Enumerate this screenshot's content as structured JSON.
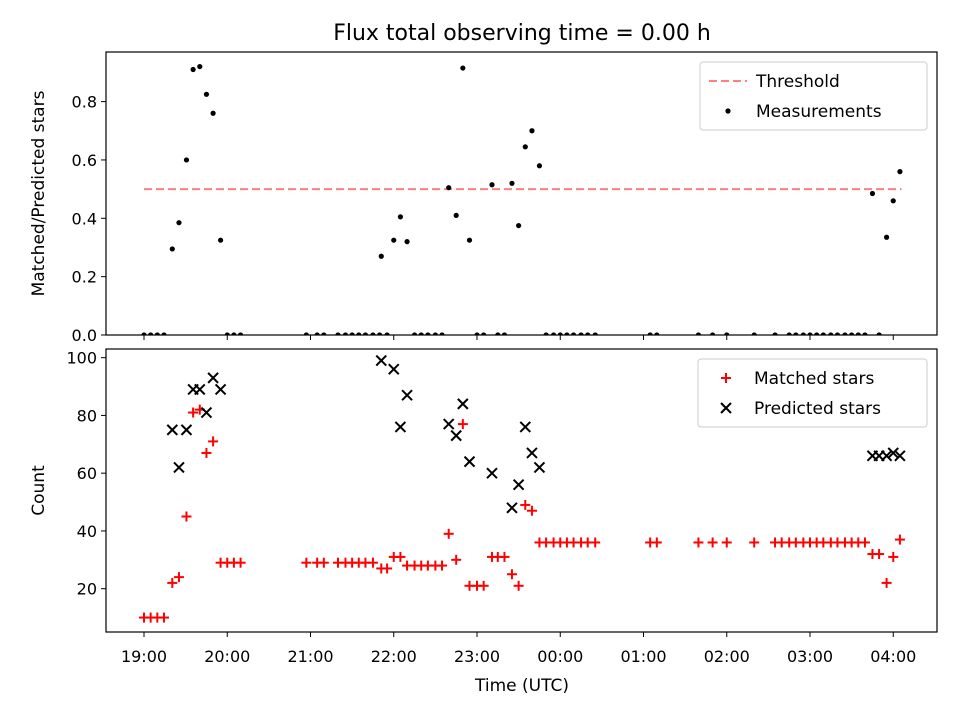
{
  "chart_data": {
    "type": "scatter",
    "title": "Flux total observing time = 0.00 h",
    "xlabel": "Time (UTC)",
    "x_ticks": [
      "19:00",
      "20:00",
      "21:00",
      "22:00",
      "23:00",
      "00:00",
      "01:00",
      "02:00",
      "03:00",
      "04:00"
    ],
    "panels": [
      {
        "name": "ratio",
        "ylabel": "Matched/Predicted stars",
        "ylim": [
          0,
          0.97
        ],
        "yticks": [
          "0.0",
          "0.2",
          "0.4",
          "0.6",
          "0.8"
        ],
        "legend_position": "upper right",
        "threshold": {
          "label": "Threshold",
          "value": 0.5,
          "x_range": [
            0,
            9.1
          ],
          "color": "#ff7f7f"
        },
        "series": [
          {
            "name": "Measurements",
            "marker": "dot",
            "color": "#000000",
            "points": [
              [
                0.0,
                0
              ],
              [
                0.08,
                0
              ],
              [
                0.16,
                0
              ],
              [
                0.24,
                0
              ],
              [
                0.34,
                0.295
              ],
              [
                0.42,
                0.385
              ],
              [
                0.51,
                0.6
              ],
              [
                0.59,
                0.91
              ],
              [
                0.67,
                0.92
              ],
              [
                0.75,
                0.825
              ],
              [
                0.83,
                0.76
              ],
              [
                0.92,
                0.325
              ],
              [
                1.0,
                0
              ],
              [
                1.08,
                0
              ],
              [
                1.16,
                0
              ],
              [
                1.95,
                0
              ],
              [
                2.08,
                0
              ],
              [
                2.16,
                0
              ],
              [
                2.33,
                0
              ],
              [
                2.42,
                0
              ],
              [
                2.5,
                0
              ],
              [
                2.58,
                0
              ],
              [
                2.66,
                0
              ],
              [
                2.75,
                0
              ],
              [
                2.83,
                0
              ],
              [
                2.85,
                0.27
              ],
              [
                2.92,
                0
              ],
              [
                3.0,
                0.325
              ],
              [
                3.08,
                0.405
              ],
              [
                3.16,
                0.32
              ],
              [
                3.25,
                0
              ],
              [
                3.33,
                0
              ],
              [
                3.41,
                0
              ],
              [
                3.5,
                0
              ],
              [
                3.58,
                0
              ],
              [
                3.66,
                0.505
              ],
              [
                3.75,
                0.41
              ],
              [
                3.83,
                0.915
              ],
              [
                3.91,
                0.325
              ],
              [
                4.0,
                0
              ],
              [
                4.08,
                0
              ],
              [
                4.18,
                0.515
              ],
              [
                4.25,
                0
              ],
              [
                4.33,
                0
              ],
              [
                4.42,
                0.52
              ],
              [
                4.5,
                0.375
              ],
              [
                4.58,
                0.645
              ],
              [
                4.66,
                0.7
              ],
              [
                4.75,
                0.58
              ],
              [
                4.83,
                0
              ],
              [
                4.92,
                0
              ],
              [
                5.0,
                0
              ],
              [
                5.08,
                0
              ],
              [
                5.16,
                0
              ],
              [
                5.25,
                0
              ],
              [
                5.33,
                0
              ],
              [
                5.42,
                0
              ],
              [
                6.08,
                0
              ],
              [
                6.16,
                0
              ],
              [
                6.66,
                0
              ],
              [
                6.83,
                0
              ],
              [
                7.0,
                0
              ],
              [
                7.33,
                0
              ],
              [
                7.58,
                0
              ],
              [
                7.75,
                0
              ],
              [
                7.83,
                0
              ],
              [
                7.92,
                0
              ],
              [
                8.0,
                0
              ],
              [
                8.08,
                0
              ],
              [
                8.16,
                0
              ],
              [
                8.25,
                0
              ],
              [
                8.33,
                0
              ],
              [
                8.42,
                0
              ],
              [
                8.5,
                0
              ],
              [
                8.58,
                0
              ],
              [
                8.66,
                0
              ],
              [
                8.75,
                0.485
              ],
              [
                8.83,
                0
              ],
              [
                8.92,
                0.335
              ],
              [
                9.0,
                0.46
              ],
              [
                9.08,
                0.56
              ]
            ]
          }
        ]
      },
      {
        "name": "count",
        "ylabel": "Count",
        "ylim": [
          5,
          103
        ],
        "yticks": [
          "20",
          "40",
          "60",
          "80",
          "100"
        ],
        "legend_position": "upper right",
        "series": [
          {
            "name": "Matched stars",
            "marker": "plus",
            "color": "#ff0000",
            "points": [
              [
                0.0,
                10
              ],
              [
                0.08,
                10
              ],
              [
                0.16,
                10
              ],
              [
                0.24,
                10
              ],
              [
                0.34,
                22
              ],
              [
                0.42,
                24
              ],
              [
                0.51,
                45
              ],
              [
                0.59,
                81
              ],
              [
                0.67,
                82
              ],
              [
                0.75,
                67
              ],
              [
                0.83,
                71
              ],
              [
                0.92,
                29
              ],
              [
                1.0,
                29
              ],
              [
                1.08,
                29
              ],
              [
                1.16,
                29
              ],
              [
                1.95,
                29
              ],
              [
                2.08,
                29
              ],
              [
                2.16,
                29
              ],
              [
                2.33,
                29
              ],
              [
                2.42,
                29
              ],
              [
                2.5,
                29
              ],
              [
                2.58,
                29
              ],
              [
                2.66,
                29
              ],
              [
                2.75,
                29
              ],
              [
                2.85,
                27
              ],
              [
                2.92,
                27
              ],
              [
                3.0,
                31
              ],
              [
                3.08,
                31
              ],
              [
                3.16,
                28
              ],
              [
                3.25,
                28
              ],
              [
                3.33,
                28
              ],
              [
                3.41,
                28
              ],
              [
                3.5,
                28
              ],
              [
                3.58,
                28
              ],
              [
                3.66,
                39
              ],
              [
                3.75,
                30
              ],
              [
                3.83,
                77
              ],
              [
                3.91,
                21
              ],
              [
                4.0,
                21
              ],
              [
                4.08,
                21
              ],
              [
                4.18,
                31
              ],
              [
                4.25,
                31
              ],
              [
                4.33,
                31
              ],
              [
                4.42,
                25
              ],
              [
                4.5,
                21
              ],
              [
                4.58,
                49
              ],
              [
                4.66,
                47
              ],
              [
                4.75,
                36
              ],
              [
                4.83,
                36
              ],
              [
                4.92,
                36
              ],
              [
                5.0,
                36
              ],
              [
                5.08,
                36
              ],
              [
                5.16,
                36
              ],
              [
                5.25,
                36
              ],
              [
                5.33,
                36
              ],
              [
                5.42,
                36
              ],
              [
                6.08,
                36
              ],
              [
                6.16,
                36
              ],
              [
                6.66,
                36
              ],
              [
                6.83,
                36
              ],
              [
                7.0,
                36
              ],
              [
                7.33,
                36
              ],
              [
                7.58,
                36
              ],
              [
                7.66,
                36
              ],
              [
                7.75,
                36
              ],
              [
                7.83,
                36
              ],
              [
                7.92,
                36
              ],
              [
                8.0,
                36
              ],
              [
                8.08,
                36
              ],
              [
                8.16,
                36
              ],
              [
                8.25,
                36
              ],
              [
                8.33,
                36
              ],
              [
                8.42,
                36
              ],
              [
                8.5,
                36
              ],
              [
                8.58,
                36
              ],
              [
                8.66,
                36
              ],
              [
                8.75,
                32
              ],
              [
                8.83,
                32
              ],
              [
                8.92,
                22
              ],
              [
                9.0,
                31
              ],
              [
                9.08,
                37
              ]
            ]
          },
          {
            "name": "Predicted stars",
            "marker": "x",
            "color": "#000000",
            "points": [
              [
                0.34,
                75
              ],
              [
                0.42,
                62
              ],
              [
                0.51,
                75
              ],
              [
                0.59,
                89
              ],
              [
                0.67,
                89
              ],
              [
                0.75,
                81
              ],
              [
                0.83,
                93
              ],
              [
                0.92,
                89
              ],
              [
                2.85,
                99
              ],
              [
                3.0,
                96
              ],
              [
                3.08,
                76
              ],
              [
                3.16,
                87
              ],
              [
                3.66,
                77
              ],
              [
                3.75,
                73
              ],
              [
                3.83,
                84
              ],
              [
                3.91,
                64
              ],
              [
                4.18,
                60
              ],
              [
                4.42,
                48
              ],
              [
                4.5,
                56
              ],
              [
                4.58,
                76
              ],
              [
                4.66,
                67
              ],
              [
                4.75,
                62
              ],
              [
                8.75,
                66
              ],
              [
                8.83,
                66
              ],
              [
                8.92,
                66
              ],
              [
                9.0,
                67
              ],
              [
                9.08,
                66
              ]
            ]
          }
        ]
      }
    ]
  }
}
